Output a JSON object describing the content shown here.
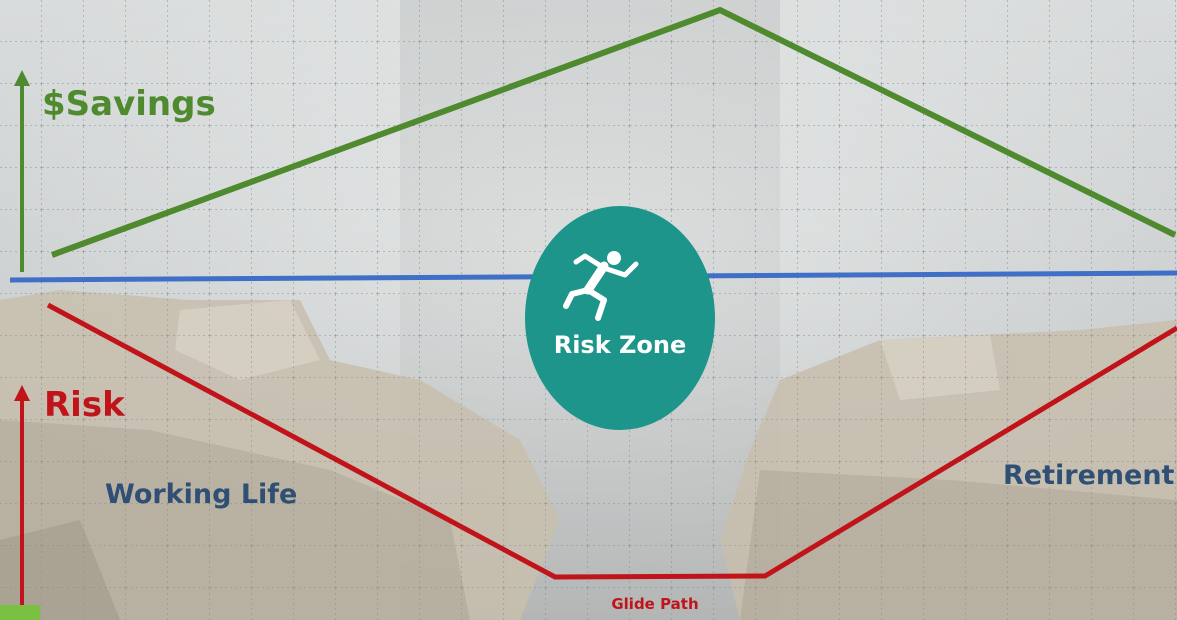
{
  "labels": {
    "savings": "$Savings",
    "risk": "Risk",
    "working_life": "Working Life",
    "retirement": "Retirement",
    "risk_zone": "Risk Zone",
    "glide_path": "Glide Path"
  }
}
